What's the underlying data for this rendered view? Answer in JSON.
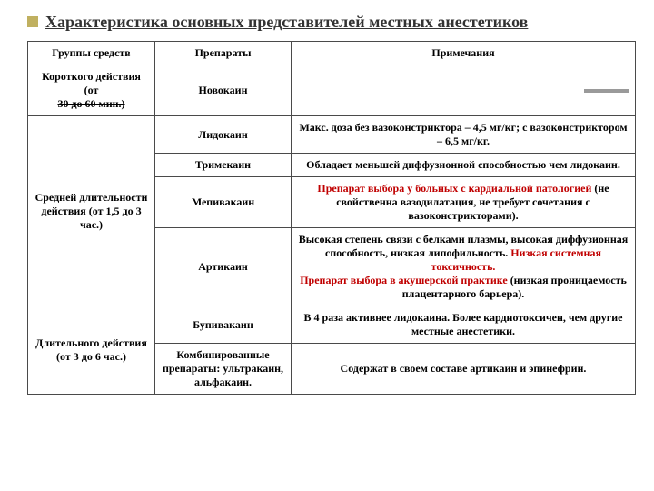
{
  "title": "Характеристика основных представителей местных анестетиков",
  "headers": {
    "c1": "Группы средств",
    "c2": "Препараты",
    "c3": "Примечания"
  },
  "group_short": {
    "label_line1": "Короткого действия (от",
    "label_line2_strike": "30 до 60 мин.)",
    "drug": "Новокаин"
  },
  "group_medium": {
    "label": "Средней длительности действия (от 1,5 до 3 час.)",
    "rows": [
      {
        "drug": "Лидокаин",
        "note_black": "Макс. доза без вазоконстриктора – 4,5 мг/кг; с вазоконстриктором – 6,5 мг/кг."
      },
      {
        "drug": "Тримекаин",
        "note_black": "Обладает меньшей диффузионной способностью чем лидокаин."
      },
      {
        "drug": "Мепивакаин",
        "note_red": "Препарат выбора у больных с кардиальной патологией ",
        "note_black_tail": "(не свойственна вазодилатация, не требует сочетания с вазоконстрикторами)."
      },
      {
        "drug": "Артикаин",
        "note_black1": "Высокая степень связи с белками плазмы, высокая диффузионная способность, низкая липофильность. ",
        "note_red1": "Низкая системная токсичность.",
        "note_red2": "Препарат выбора в акушерской практике ",
        "note_black2": "(низкая проницаемость плацентарного барьера)."
      }
    ]
  },
  "group_long": {
    "label": "Длительного действия (от 3 до 6 час.)",
    "rows": [
      {
        "drug": "Бупивакаин",
        "note_black": "В 4 раза активнее лидокаина. Более кардиотоксичен, чем другие местные анестетики."
      },
      {
        "drug": "Комбинированные препараты: ультракаин, альфакаин.",
        "note_black": "Содержат в своем составе артикаин и эпинефрин."
      }
    ]
  },
  "colors": {
    "accent_red": "#c00000",
    "bullet": "#c0b060",
    "border": "#4a4a4a",
    "gray_bar": "#9a9a9a"
  }
}
